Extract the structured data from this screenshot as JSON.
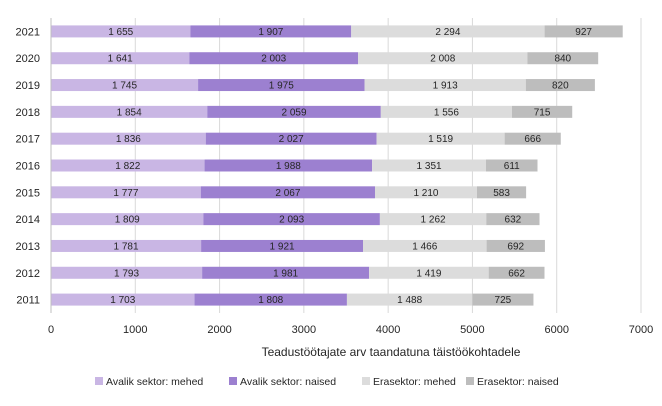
{
  "chart_data": {
    "type": "bar",
    "orientation": "horizontal",
    "stacked": true,
    "categories": [
      "2021",
      "2020",
      "2019",
      "2018",
      "2017",
      "2016",
      "2015",
      "2014",
      "2013",
      "2012",
      "2011"
    ],
    "series": [
      {
        "name": "Avalik sektor: mehed",
        "color": "#c9b6e4",
        "values": [
          1655,
          1641,
          1745,
          1854,
          1836,
          1822,
          1777,
          1809,
          1781,
          1793,
          1703
        ],
        "labels": [
          "1 655",
          "1 641",
          "1 745",
          "1 854",
          "1 836",
          "1 822",
          "1 777",
          "1 809",
          "1 781",
          "1 793",
          "1 703"
        ]
      },
      {
        "name": "Avalik sektor: naised",
        "color": "#9c80d0",
        "values": [
          1907,
          2003,
          1975,
          2059,
          2027,
          1988,
          2067,
          2093,
          1921,
          1981,
          1808
        ],
        "labels": [
          "1 907",
          "2 003",
          "1 975",
          "2 059",
          "2 027",
          "1 988",
          "2 067",
          "2 093",
          "1 921",
          "1 981",
          "1 808"
        ]
      },
      {
        "name": "Erasektor: mehed",
        "color": "#dcdcdc",
        "values": [
          2294,
          2008,
          1913,
          1556,
          1519,
          1351,
          1210,
          1262,
          1466,
          1419,
          1488
        ],
        "labels": [
          "2 294",
          "2 008",
          "1 913",
          "1 556",
          "1 519",
          "1 351",
          "1 210",
          "1 262",
          "1 466",
          "1 419",
          "1 488"
        ]
      },
      {
        "name": "Erasektor: naised",
        "color": "#bdbdbd",
        "values": [
          927,
          840,
          820,
          715,
          666,
          611,
          583,
          632,
          692,
          662,
          725
        ],
        "labels": [
          "927",
          "840",
          "820",
          "715",
          "666",
          "611",
          "583",
          "632",
          "692",
          "662",
          "725"
        ]
      }
    ],
    "xlabel": "Teadustöötajate arv taandatuna täistöökohtadele",
    "ylabel": "",
    "xlim": [
      0,
      7000
    ],
    "xticks": [
      "0",
      "1000",
      "2000",
      "3000",
      "4000",
      "5000",
      "6000",
      "7000"
    ],
    "grid": true,
    "legend_position": "bottom"
  }
}
